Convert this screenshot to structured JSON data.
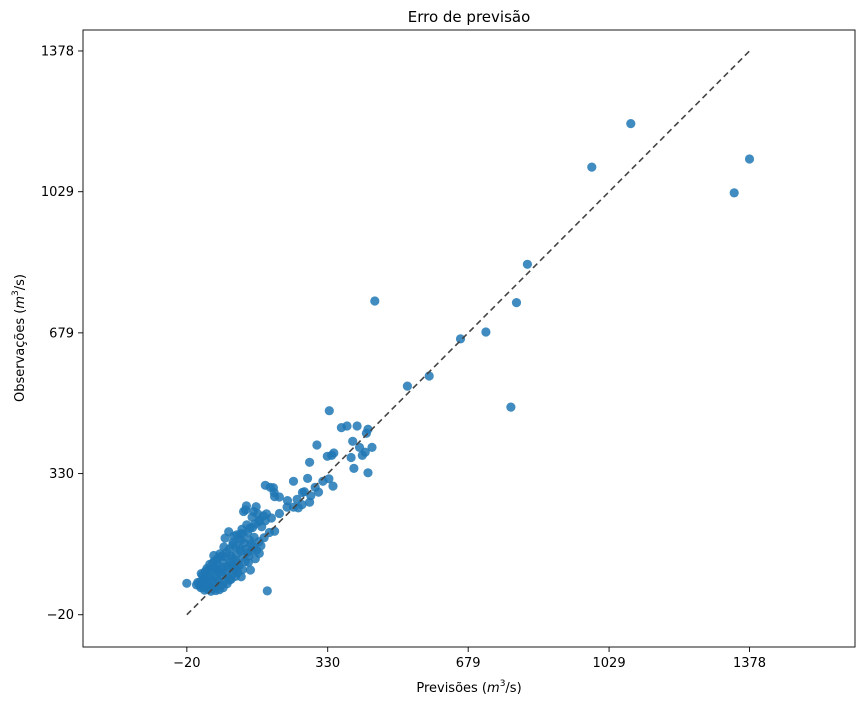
{
  "chart_data": {
    "type": "scatter",
    "title": "Erro de previsão",
    "xlabel_prefix": "Previsões (",
    "xlabel_math": "m",
    "xlabel_sup": "3",
    "xlabel_suffix": "/s)",
    "ylabel_prefix": "Observações (",
    "ylabel_math": "m",
    "ylabel_sup": "3",
    "ylabel_suffix": "/s)",
    "xlim": [
      -278,
      1640
    ],
    "ylim": [
      -100,
      1430
    ],
    "xticks": [
      -20,
      330,
      679,
      1029,
      1378
    ],
    "yticks": [
      -20,
      330,
      679,
      1029,
      1378
    ],
    "xtick_labels": [
      "−20",
      "330",
      "679",
      "1029",
      "1378"
    ],
    "ytick_labels": [
      "−20",
      "330",
      "679",
      "1029",
      "1378"
    ],
    "grid": false,
    "point_color": "#1f77b4",
    "reference_line": {
      "from": [
        -20,
        -20
      ],
      "to": [
        1378,
        1378
      ],
      "style": "dashed",
      "color": "#444444"
    },
    "points": [
      [
        -20,
        58
      ],
      [
        1083,
        1198
      ],
      [
        1378,
        1110
      ],
      [
        986,
        1090
      ],
      [
        1340,
        1026
      ],
      [
        826,
        849
      ],
      [
        799,
        754
      ],
      [
        447,
        758
      ],
      [
        723,
        681
      ],
      [
        660,
        664
      ],
      [
        528,
        547
      ],
      [
        582,
        572
      ],
      [
        785,
        495
      ],
      [
        334,
        486
      ],
      [
        364,
        444
      ],
      [
        378,
        448
      ],
      [
        403,
        448
      ],
      [
        430,
        440
      ],
      [
        392,
        410
      ],
      [
        426,
        430
      ],
      [
        409,
        395
      ],
      [
        440,
        395
      ],
      [
        423,
        383
      ],
      [
        416,
        375
      ],
      [
        388,
        370
      ],
      [
        430,
        332
      ],
      [
        395,
        343
      ],
      [
        345,
        381
      ],
      [
        340,
        375
      ],
      [
        329,
        373
      ],
      [
        303,
        401
      ],
      [
        285,
        358
      ],
      [
        280,
        318
      ],
      [
        318,
        311
      ],
      [
        299,
        296
      ],
      [
        307,
        284
      ],
      [
        272,
        285
      ],
      [
        267,
        283
      ],
      [
        288,
        275
      ],
      [
        285,
        259
      ],
      [
        333,
        317
      ],
      [
        343,
        299
      ],
      [
        245,
        311
      ],
      [
        175,
        301
      ],
      [
        187,
        296
      ],
      [
        195,
        295
      ],
      [
        197,
        283
      ],
      [
        198,
        273
      ],
      [
        210,
        272
      ],
      [
        230,
        263
      ],
      [
        229,
        247
      ],
      [
        245,
        247
      ],
      [
        257,
        245
      ],
      [
        254,
        266
      ],
      [
        266,
        253
      ],
      [
        210,
        231
      ],
      [
        178,
        230
      ],
      [
        175,
        213
      ],
      [
        170,
        225
      ],
      [
        159,
        211
      ],
      [
        121,
        236
      ],
      [
        126,
        240
      ],
      [
        128,
        250
      ],
      [
        142,
        222
      ],
      [
        146,
        236
      ],
      [
        152,
        248
      ],
      [
        156,
        230
      ],
      [
        190,
        220
      ],
      [
        198,
        187
      ],
      [
        166,
        198
      ],
      [
        143,
        196
      ],
      [
        129,
        203
      ],
      [
        114,
        181
      ],
      [
        117,
        192
      ],
      [
        115,
        165
      ],
      [
        104,
        178
      ],
      [
        95,
        160
      ],
      [
        102,
        148
      ],
      [
        112,
        144
      ],
      [
        123,
        157
      ],
      [
        136,
        165
      ],
      [
        147,
        172
      ],
      [
        140,
        155
      ],
      [
        110,
        168
      ],
      [
        94,
        153
      ],
      [
        86,
        143
      ],
      [
        72,
        148
      ],
      [
        75,
        124
      ],
      [
        69,
        113
      ],
      [
        90,
        126
      ],
      [
        100,
        116
      ],
      [
        79,
        135
      ],
      [
        61,
        123
      ],
      [
        55,
        105
      ],
      [
        47,
        127
      ],
      [
        44,
        108
      ],
      [
        48,
        98
      ],
      [
        37,
        105
      ],
      [
        30,
        95
      ],
      [
        42,
        89
      ],
      [
        55,
        92
      ],
      [
        67,
        98
      ],
      [
        60,
        85
      ],
      [
        37,
        74
      ],
      [
        26,
        77
      ],
      [
        16,
        82
      ],
      [
        22,
        65
      ],
      [
        18,
        55
      ],
      [
        20,
        48
      ],
      [
        12,
        52
      ],
      [
        4,
        54
      ],
      [
        7,
        60
      ],
      [
        31,
        60
      ],
      [
        37,
        50
      ],
      [
        45,
        60
      ],
      [
        55,
        70
      ],
      [
        66,
        78
      ],
      [
        77,
        82
      ],
      [
        97,
        90
      ],
      [
        86,
        66
      ],
      [
        80,
        57
      ],
      [
        66,
        54
      ],
      [
        59,
        63
      ],
      [
        51,
        50
      ],
      [
        44,
        44
      ],
      [
        33,
        43
      ],
      [
        24,
        41
      ],
      [
        15,
        47
      ],
      [
        28,
        59
      ],
      [
        39,
        68
      ],
      [
        49,
        76
      ],
      [
        58,
        88
      ],
      [
        70,
        92
      ],
      [
        83,
        102
      ],
      [
        93,
        100
      ],
      [
        106,
        108
      ],
      [
        119,
        123
      ],
      [
        131,
        134
      ],
      [
        145,
        148
      ],
      [
        159,
        161
      ],
      [
        172,
        171
      ],
      [
        185,
        184
      ],
      [
        133,
        110
      ],
      [
        138,
        91
      ],
      [
        150,
        119
      ],
      [
        160,
        132
      ],
      [
        118,
        92
      ],
      [
        106,
        84
      ],
      [
        101,
        75
      ],
      [
        90,
        68
      ],
      [
        115,
        74
      ],
      [
        52,
        40
      ],
      [
        61,
        42
      ],
      [
        70,
        47
      ],
      [
        40,
        38
      ],
      [
        180,
        39
      ],
      [
        68,
        126
      ],
      [
        75,
        170
      ],
      [
        84,
        186
      ],
      [
        97,
        175
      ],
      [
        80,
        98
      ],
      [
        88,
        109
      ],
      [
        92,
        120
      ],
      [
        103,
        130
      ],
      [
        113,
        138
      ],
      [
        127,
        143
      ],
      [
        120,
        180
      ],
      [
        131,
        185
      ],
      [
        137,
        195
      ],
      [
        149,
        205
      ],
      [
        161,
        215
      ],
      [
        55,
        118
      ],
      [
        62,
        131
      ],
      [
        48,
        112
      ],
      [
        35,
        92
      ],
      [
        25,
        70
      ],
      [
        14,
        62
      ],
      [
        19,
        78
      ],
      [
        26,
        88
      ],
      [
        73,
        63
      ],
      [
        82,
        73
      ],
      [
        94,
        82
      ],
      [
        99,
        96
      ],
      [
        104,
        93
      ],
      [
        110,
        102
      ],
      [
        125,
        112
      ],
      [
        134,
        126
      ],
      [
        141,
        139
      ],
      [
        153,
        140
      ],
      [
        164,
        151
      ]
    ]
  }
}
